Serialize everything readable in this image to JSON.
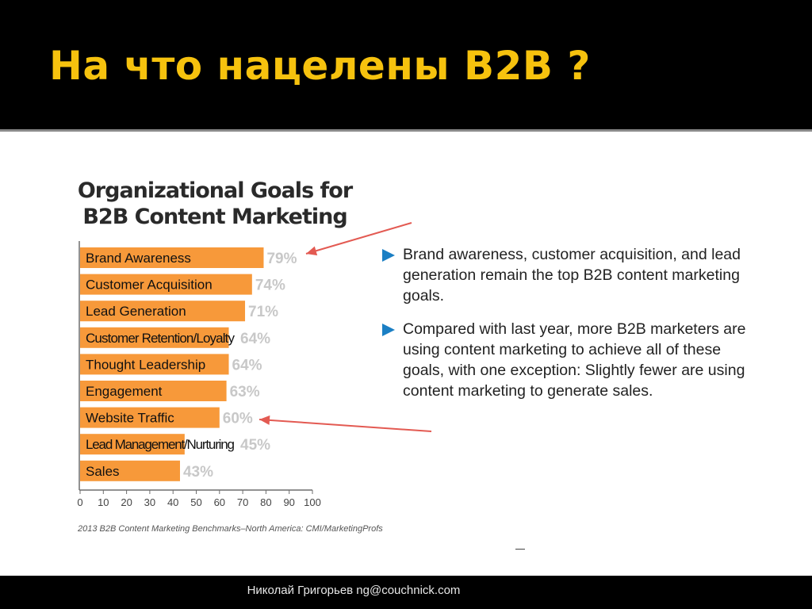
{
  "slide": {
    "title": "На что нацелены B2B ?",
    "footer": "Николай Григорьев ng@couchnick.com"
  },
  "chart_data": {
    "type": "bar",
    "orientation": "horizontal",
    "title": "Organizational Goals for B2B Content Marketing",
    "title_lines": [
      "Organizational Goals for",
      "B2B Content Marketing"
    ],
    "categories": [
      "Brand Awareness",
      "Customer Acquisition",
      "Lead Generation",
      "Customer Retention/Loyalty",
      "Thought Leadership",
      "Engagement",
      "Website Traffic",
      "Lead Management/Nurturing",
      "Sales"
    ],
    "values": [
      79,
      74,
      71,
      64,
      64,
      63,
      60,
      45,
      43
    ],
    "value_labels": [
      "79%",
      "74%",
      "71%",
      "64%",
      "64%",
      "63%",
      "60%",
      "45%",
      "43%"
    ],
    "xlim": [
      0,
      100
    ],
    "xticks": [
      "0",
      "10",
      "20",
      "30",
      "40",
      "50",
      "60",
      "70",
      "80",
      "90",
      "100"
    ],
    "source": "2013 B2B Content Marketing Benchmarks–North America: CMI/MarketingProfs",
    "bar_color": "#f7993a",
    "value_label_color": "#c8c8c8",
    "arrow_color": "#e35a52",
    "annotations": [
      "arrow to Brand Awareness",
      "arrow to Website Traffic"
    ]
  },
  "bullets": [
    "Brand awareness, customer acquisition, and lead generation remain the top B2B content marketing goals.",
    "Compared with last year, more B2B marketers are using content marketing to achieve all of these goals, with one exception:  Slightly fewer are using content marketing to generate sales."
  ],
  "colors": {
    "title": "#f6c20e",
    "bullet_marker": "#1b7fc4"
  }
}
